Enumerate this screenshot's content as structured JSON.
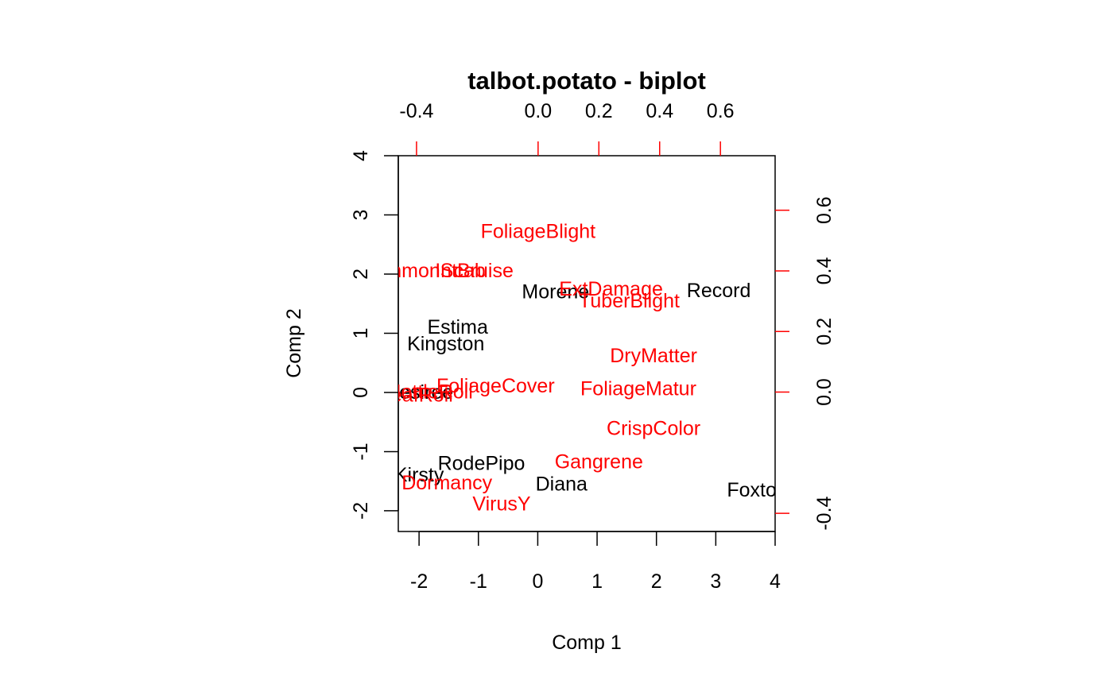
{
  "chart_data": {
    "type": "scatter",
    "subtype": "biplot",
    "title": "talbot.potato - biplot",
    "xlabel": "Comp 1",
    "ylabel": "Comp 2",
    "xlim": [
      -2.35,
      4.0
    ],
    "ylim": [
      -2.35,
      4.0
    ],
    "bottom_ticks": [
      "-2",
      "-1",
      "0",
      "1",
      "2",
      "3",
      "4"
    ],
    "left_ticks": [
      "-2",
      "-1",
      "0",
      "1",
      "2",
      "3",
      "4"
    ],
    "loadings_lim": [
      -0.46,
      0.78
    ],
    "top_ticks": [
      "-0.4",
      "0.0",
      "0.2",
      "0.4",
      "0.6"
    ],
    "right_ticks": [
      "-0.4",
      "0.0",
      "0.2",
      "0.4",
      "0.6"
    ],
    "score_color": "#000000",
    "loading_color": "#ff0000",
    "scores": [
      {
        "label": "Record",
        "x": 3.05,
        "y": 1.72
      },
      {
        "label": "Morene",
        "x": 0.3,
        "y": 1.7
      },
      {
        "label": "Estima",
        "x": -1.35,
        "y": 1.1
      },
      {
        "label": "Kingston",
        "x": -1.55,
        "y": 0.82
      },
      {
        "label": "Desiree",
        "x": -2.0,
        "y": 0.0
      },
      {
        "label": "RodePipo",
        "x": -0.95,
        "y": -1.2
      },
      {
        "label": "Kirsty",
        "x": -2.0,
        "y": -1.4
      },
      {
        "label": "Diana",
        "x": 0.4,
        "y": -1.55
      },
      {
        "label": "Foxton",
        "x": 3.7,
        "y": -1.65
      }
    ],
    "loadings": [
      {
        "label": "FoliageBlight",
        "x": 0.0,
        "y": 0.53
      },
      {
        "label": "CommonScab",
        "x": -0.38,
        "y": 0.4
      },
      {
        "label": "IntBruise",
        "x": -0.21,
        "y": 0.4
      },
      {
        "label": "ExtDamage",
        "x": 0.24,
        "y": 0.34
      },
      {
        "label": "TuberBlight",
        "x": 0.3,
        "y": 0.3
      },
      {
        "label": "DryMatter",
        "x": 0.38,
        "y": 0.12
      },
      {
        "label": "FoliageCover",
        "x": -0.14,
        "y": 0.02
      },
      {
        "label": "FoliageMatur",
        "x": 0.33,
        "y": 0.01
      },
      {
        "label": "MottleRoll",
        "x": -0.36,
        "y": 0.0
      },
      {
        "label": "LeafRoll",
        "x": -0.4,
        "y": -0.01
      },
      {
        "label": "CrispColor",
        "x": 0.38,
        "y": -0.12
      },
      {
        "label": "Gangrene",
        "x": 0.2,
        "y": -0.23
      },
      {
        "label": "Dormancy",
        "x": -0.3,
        "y": -0.3
      },
      {
        "label": "VirusY",
        "x": -0.12,
        "y": -0.37
      }
    ]
  }
}
